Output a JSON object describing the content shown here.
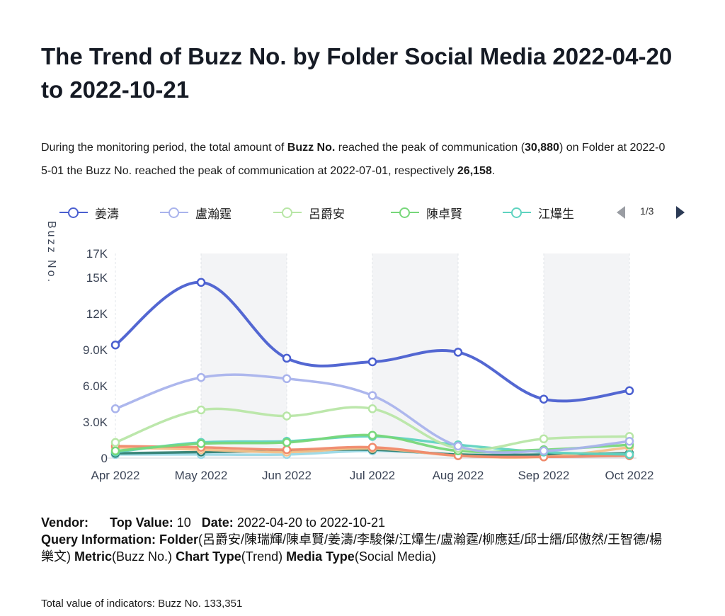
{
  "title": "The Trend of Buzz No. by Folder Social Media 2022-04-20 to 2022-10-21",
  "summary": {
    "p1": "During the monitoring period, the total amount of ",
    "metric": "Buzz No.",
    "p2": " reached the peak of communication (",
    "peak_total": "30,880",
    "p3": ") on Folder at 2022-05-01 the Buzz No. reached the peak of communication at 2022-07-01, respectively ",
    "peak_value": "26,158",
    "p4": "."
  },
  "legend": {
    "items": [
      "姜濤",
      "盧瀚霆",
      "呂爵安",
      "陳卓賢",
      "江𤒹生"
    ],
    "page": "1/3"
  },
  "footer": {
    "vendor_label": "Vendor:",
    "vendor_value": "",
    "top_label": "Top Value:",
    "top_value": "10",
    "date_label": "Date:",
    "date_value": "2022-04-20 to 2022-10-21",
    "query_label": "Query Information:",
    "folder_label": "Folder",
    "folder_value": "(呂爵安/陳瑞輝/陳卓賢/姜濤/李駿傑/江𤒹生/盧瀚霆/柳應廷/邱士縉/邱傲然/王智德/楊樂文)",
    "metric_label": "Metric",
    "metric_value": "(Buzz No.)",
    "chart_type_label": "Chart Type",
    "chart_type_value": "(Trend)",
    "media_type_label": "Media Type",
    "media_type_value": "(Social Media)",
    "total": "Total value of indicators: Buzz No. 133,351"
  },
  "chart_data": {
    "type": "line",
    "ylabel": "Buzz No.",
    "ylim": [
      0,
      17000
    ],
    "y_ticks": [
      "0",
      "3.0K",
      "6.0K",
      "9.0K",
      "12K",
      "15K",
      "17K"
    ],
    "y_tick_values": [
      0,
      3000,
      6000,
      9000,
      12000,
      15000,
      17000
    ],
    "categories": [
      "Apr 2022",
      "May 2022",
      "Jun 2022",
      "Jul 2022",
      "Aug 2022",
      "Sep 2022",
      "Oct 2022"
    ],
    "legend_placement": "top",
    "grid": "alternating shaded bands",
    "series": [
      {
        "name": "姜濤",
        "color": "#4a5fd0",
        "values": [
          9400,
          14600,
          8300,
          8000,
          8800,
          4900,
          5600
        ]
      },
      {
        "name": "盧瀚霆",
        "color": "#a9b3ec",
        "values": [
          4100,
          6700,
          6600,
          5200,
          1000,
          600,
          1400
        ]
      },
      {
        "name": "呂爵安",
        "color": "#b8e6a6",
        "values": [
          1300,
          4000,
          3500,
          4100,
          800,
          1600,
          1800
        ]
      },
      {
        "name": "陳卓賢",
        "color": "#77d77a",
        "values": [
          600,
          1200,
          1300,
          1900,
          600,
          700,
          1100
        ]
      },
      {
        "name": "江𤒹生",
        "color": "#5fd3c0",
        "values": [
          500,
          1300,
          1400,
          1800,
          1100,
          500,
          300
        ]
      },
      {
        "color": "#f08a6c",
        "values": [
          1000,
          900,
          700,
          900,
          200,
          100,
          200
        ]
      },
      {
        "color": "#f4c089",
        "values": [
          900,
          700,
          500,
          800,
          200,
          100,
          900
        ]
      },
      {
        "color": "#2f7f72",
        "values": [
          400,
          500,
          600,
          700,
          300,
          300,
          400
        ]
      },
      {
        "color": "#9ad8e6",
        "values": [
          300,
          300,
          300,
          600,
          300,
          200,
          200
        ]
      }
    ]
  }
}
